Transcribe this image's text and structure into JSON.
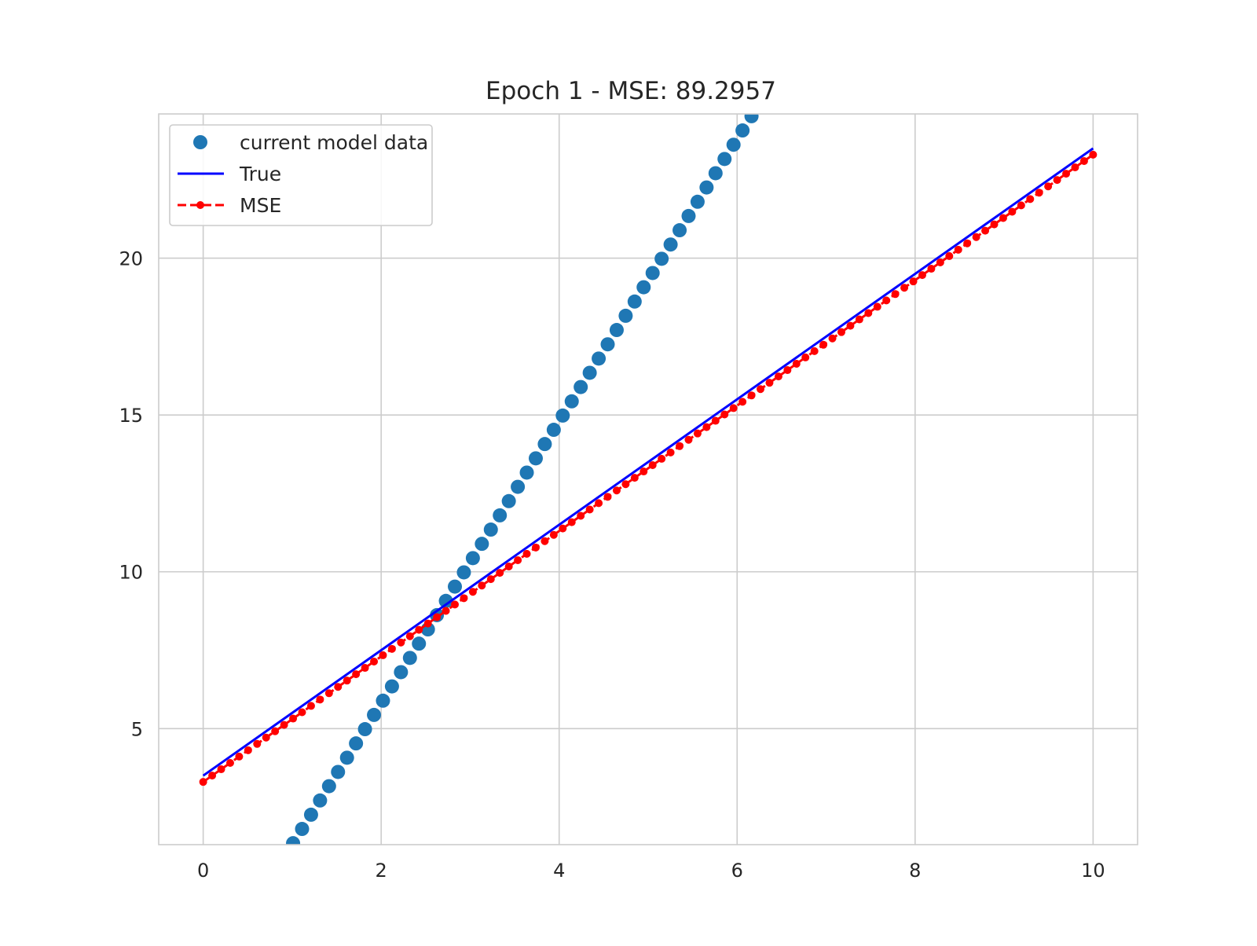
{
  "chart_data": {
    "type": "line",
    "title": "Epoch 1 - MSE: 89.2957",
    "xlabel": "",
    "ylabel": "",
    "xlim": [
      -0.5,
      10.5
    ],
    "ylim": [
      1.3,
      24.6
    ],
    "xticks": [
      0,
      2,
      4,
      6,
      8,
      10
    ],
    "yticks": [
      5,
      10,
      15,
      20
    ],
    "grid": true,
    "legend_position": "upper-left",
    "series": [
      {
        "name": "current model data",
        "style": "scatter",
        "color": "#1f77b4",
        "x_start": 0,
        "x_end": 10,
        "count": 100,
        "intercept": -3.2,
        "slope": 4.5
      },
      {
        "name": "True",
        "style": "solid-line",
        "color": "#0000ff",
        "x": [
          0,
          10
        ],
        "y": [
          3.5,
          23.5
        ]
      },
      {
        "name": "MSE",
        "style": "dashed-line-dots",
        "color": "#ff0000",
        "x_start": 0,
        "x_end": 10,
        "count": 100,
        "intercept": 3.3,
        "slope": 2.0
      }
    ]
  }
}
